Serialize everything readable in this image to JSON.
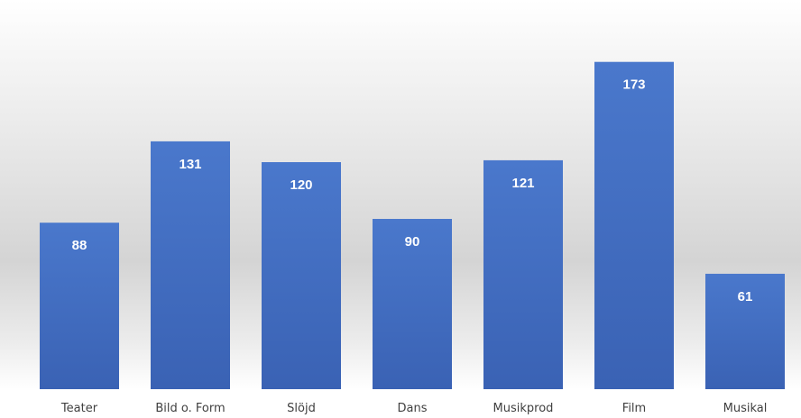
{
  "chart_data": {
    "type": "bar",
    "categories": [
      "Teater",
      "Bild o. Form",
      "Slöjd",
      "Dans",
      "Musikprod",
      "Film",
      "Musikal"
    ],
    "values": [
      88,
      131,
      120,
      90,
      121,
      173,
      61
    ],
    "title": "",
    "xlabel": "",
    "ylabel": "",
    "ylim": [
      0,
      200
    ],
    "grid": false,
    "legend": "none",
    "data_labels": "inside-top",
    "colors": {
      "bar_top": "#4a78cc",
      "bar_bottom": "#3a62b4",
      "data_label": "#ffffff",
      "category_label": "#404040"
    }
  }
}
